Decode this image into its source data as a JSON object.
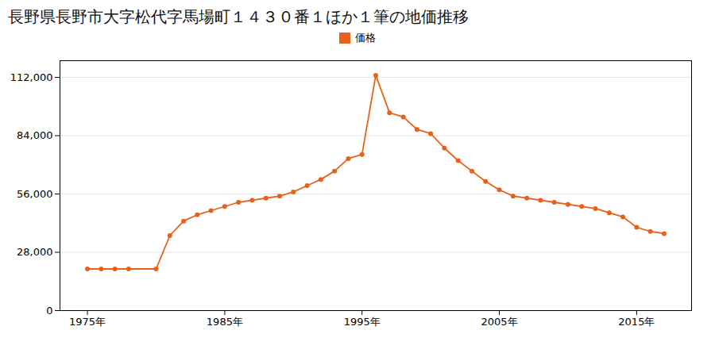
{
  "chart_data": {
    "type": "line",
    "title": "長野県長野市大字松代字馬場町１４３０番１ほか１筆の地価推移",
    "x": [
      1975,
      1976,
      1977,
      1978,
      1980,
      1981,
      1982,
      1983,
      1984,
      1985,
      1986,
      1987,
      1988,
      1989,
      1990,
      1991,
      1992,
      1993,
      1994,
      1995,
      1996,
      1997,
      1998,
      1999,
      2000,
      2001,
      2002,
      2003,
      2004,
      2005,
      2006,
      2007,
      2008,
      2009,
      2010,
      2011,
      2012,
      2013,
      2014,
      2015,
      2016,
      2017
    ],
    "series": [
      {
        "name": "価格",
        "color": "#e8611a",
        "marker": "circle",
        "line_style": "solid",
        "values": [
          20000,
          20000,
          20000,
          20000,
          20000,
          36000,
          43000,
          46000,
          48000,
          50000,
          52000,
          53000,
          54000,
          55000,
          57000,
          60000,
          63000,
          67000,
          73000,
          75000,
          113000,
          95000,
          93000,
          87000,
          85000,
          78000,
          72000,
          67000,
          62000,
          58000,
          55000,
          54000,
          53000,
          52000,
          51000,
          50000,
          49000,
          47000,
          45000,
          40000,
          38000,
          37000
        ]
      }
    ],
    "xlim": [
      1973,
      2019
    ],
    "xticks": [
      {
        "value": 1975,
        "label": "1975年"
      },
      {
        "value": 1985,
        "label": "1985年"
      },
      {
        "value": 1995,
        "label": "1995年"
      },
      {
        "value": 2005,
        "label": "2005年"
      },
      {
        "value": 2015,
        "label": "2015年"
      }
    ],
    "ylim": [
      0,
      120000
    ],
    "yticks": [
      0,
      {
        "value": 28000,
        "label": "28,000"
      },
      {
        "value": 56000,
        "label": "56,000"
      },
      {
        "value": 84000,
        "label": "84,000"
      },
      {
        "value": 112000,
        "label": "112,000"
      }
    ],
    "grid": "y",
    "legend": "top"
  }
}
